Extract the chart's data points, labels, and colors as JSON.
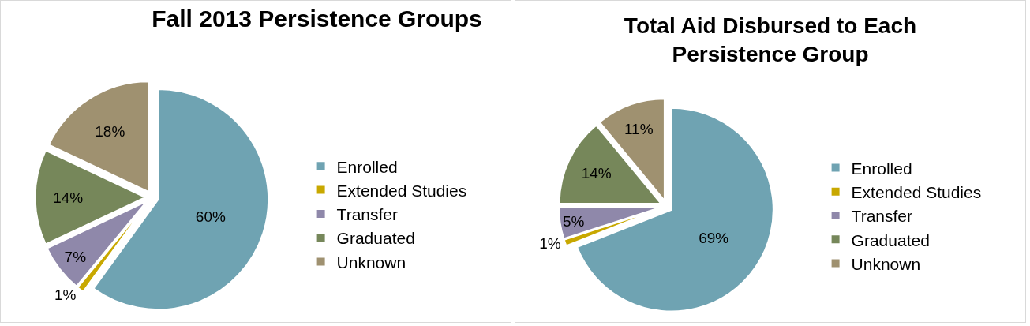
{
  "chart_data": [
    {
      "type": "pie",
      "title": "Fall 2013 Persistence Groups",
      "categories": [
        "Enrolled",
        "Extended Studies",
        "Transfer",
        "Graduated",
        "Unknown"
      ],
      "values": [
        60,
        1,
        7,
        14,
        18
      ],
      "value_labels": [
        "60%",
        "1%",
        "7%",
        "14%",
        "18%"
      ],
      "colors": [
        "#6fa3b2",
        "#c8a800",
        "#8f88aa",
        "#76875a",
        "#9f9170"
      ],
      "legend": "right"
    },
    {
      "type": "pie",
      "title": "Total Aid Disbursed to Each Persistence Group",
      "categories": [
        "Enrolled",
        "Extended Studies",
        "Transfer",
        "Graduated",
        "Unknown"
      ],
      "values": [
        69,
        1,
        5,
        14,
        11
      ],
      "value_labels": [
        "69%",
        "1%",
        "5%",
        "14%",
        "11%"
      ],
      "colors": [
        "#6fa3b2",
        "#c8a800",
        "#8f88aa",
        "#76875a",
        "#9f9170"
      ],
      "legend": "right"
    }
  ]
}
